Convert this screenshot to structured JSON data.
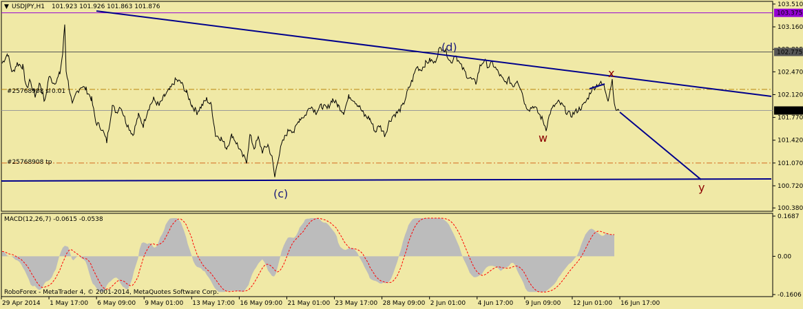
{
  "header": {
    "symbol": "USDJPY,H1",
    "ohlc": "101.923 101.926 101.863 101.876"
  },
  "colors": {
    "background": "#f0e9a6",
    "trendline": "#00008b",
    "wave_blue": "#1a1a7a",
    "wave_red": "#8b0000",
    "tp_line": "#d2691e",
    "sl_line": "#b8860b",
    "resistance": "#9400d3",
    "macd_hist": "#bcbcbc",
    "macd_signal": "#ff0000"
  },
  "chart_data": [
    {
      "type": "line",
      "title": "USDJPY,H1",
      "subtitle": "101.923 101.926 101.863 101.876",
      "ylim": [
        100.35,
        103.53
      ],
      "y_ticks": [
        "103.510",
        "103.160",
        "102.815",
        "102.470",
        "102.120",
        "101.770",
        "101.420",
        "101.070",
        "100.720",
        "100.380"
      ],
      "x_ticks": [
        "29 Apr 2014",
        "1 May 17:00",
        "6 May 09:00",
        "9 May 01:00",
        "13 May 17:00",
        "16 May 09:00",
        "21 May 01:00",
        "23 May 17:00",
        "28 May 09:00",
        "2 Jun 01:00",
        "4 Jun 17:00",
        "9 Jun 09:00",
        "12 Jun 01:00",
        "16 Jun 17:00"
      ],
      "price_anchors": [
        [
          0,
          102.6
        ],
        [
          8,
          102.75
        ],
        [
          15,
          102.45
        ],
        [
          22,
          102.6
        ],
        [
          30,
          102.55
        ],
        [
          36,
          102.2
        ],
        [
          40,
          102.35
        ],
        [
          48,
          102.1
        ],
        [
          55,
          102.3
        ],
        [
          62,
          102.0
        ],
        [
          68,
          102.4
        ],
        [
          75,
          102.3
        ],
        [
          80,
          102.35
        ],
        [
          84,
          102.45
        ],
        [
          88,
          102.75
        ],
        [
          91,
          103.2
        ],
        [
          93,
          102.5
        ],
        [
          97,
          102.25
        ],
        [
          102,
          101.95
        ],
        [
          108,
          102.15
        ],
        [
          115,
          102.25
        ],
        [
          122,
          102.2
        ],
        [
          130,
          102.05
        ],
        [
          136,
          101.7
        ],
        [
          145,
          101.6
        ],
        [
          152,
          101.4
        ],
        [
          160,
          101.95
        ],
        [
          166,
          101.85
        ],
        [
          172,
          101.95
        ],
        [
          180,
          101.7
        ],
        [
          190,
          101.5
        ],
        [
          198,
          101.8
        ],
        [
          205,
          101.65
        ],
        [
          212,
          101.9
        ],
        [
          220,
          102.05
        ],
        [
          228,
          101.95
        ],
        [
          236,
          102.1
        ],
        [
          244,
          102.2
        ],
        [
          252,
          102.35
        ],
        [
          260,
          102.3
        ],
        [
          268,
          102.15
        ],
        [
          276,
          101.95
        ],
        [
          283,
          101.85
        ],
        [
          290,
          101.95
        ],
        [
          297,
          102.05
        ],
        [
          304,
          101.95
        ],
        [
          310,
          101.5
        ],
        [
          318,
          101.45
        ],
        [
          326,
          101.3
        ],
        [
          334,
          101.5
        ],
        [
          342,
          101.35
        ],
        [
          348,
          101.2
        ],
        [
          355,
          101.1
        ],
        [
          360,
          101.5
        ],
        [
          366,
          101.3
        ],
        [
          372,
          101.45
        ],
        [
          378,
          101.25
        ],
        [
          386,
          101.35
        ],
        [
          392,
          101.15
        ],
        [
          396,
          100.85
        ],
        [
          400,
          101.1
        ],
        [
          406,
          101.35
        ],
        [
          412,
          101.5
        ],
        [
          418,
          101.6
        ],
        [
          424,
          101.55
        ],
        [
          432,
          101.75
        ],
        [
          440,
          101.8
        ],
        [
          448,
          101.95
        ],
        [
          456,
          101.85
        ],
        [
          464,
          101.95
        ],
        [
          472,
          101.9
        ],
        [
          480,
          102.05
        ],
        [
          488,
          101.95
        ],
        [
          496,
          101.85
        ],
        [
          504,
          102.1
        ],
        [
          510,
          102.05
        ],
        [
          518,
          101.95
        ],
        [
          526,
          101.8
        ],
        [
          534,
          101.75
        ],
        [
          542,
          101.55
        ],
        [
          548,
          101.65
        ],
        [
          556,
          101.5
        ],
        [
          562,
          101.7
        ],
        [
          568,
          101.8
        ],
        [
          575,
          101.85
        ],
        [
          582,
          101.95
        ],
        [
          590,
          102.2
        ],
        [
          596,
          102.35
        ],
        [
          602,
          102.55
        ],
        [
          608,
          102.5
        ],
        [
          615,
          102.6
        ],
        [
          622,
          102.65
        ],
        [
          628,
          102.6
        ],
        [
          634,
          102.8
        ],
        [
          640,
          102.85
        ],
        [
          646,
          102.75
        ],
        [
          652,
          102.6
        ],
        [
          658,
          102.75
        ],
        [
          664,
          102.6
        ],
        [
          670,
          102.5
        ],
        [
          676,
          102.4
        ],
        [
          682,
          102.35
        ],
        [
          688,
          102.3
        ],
        [
          694,
          102.55
        ],
        [
          700,
          102.65
        ],
        [
          706,
          102.55
        ],
        [
          712,
          102.6
        ],
        [
          718,
          102.5
        ],
        [
          724,
          102.4
        ],
        [
          730,
          102.3
        ],
        [
          736,
          102.35
        ],
        [
          742,
          102.25
        ],
        [
          748,
          102.35
        ],
        [
          754,
          102.2
        ],
        [
          760,
          101.95
        ],
        [
          766,
          101.9
        ],
        [
          772,
          101.95
        ],
        [
          778,
          101.85
        ],
        [
          784,
          101.75
        ],
        [
          790,
          101.6
        ],
        [
          796,
          101.85
        ],
        [
          802,
          101.95
        ],
        [
          808,
          102.0
        ],
        [
          814,
          101.95
        ],
        [
          820,
          101.85
        ],
        [
          826,
          101.8
        ],
        [
          832,
          101.85
        ],
        [
          838,
          101.9
        ],
        [
          844,
          101.95
        ],
        [
          850,
          102.05
        ],
        [
          856,
          102.2
        ],
        [
          862,
          102.25
        ],
        [
          868,
          102.3
        ],
        [
          874,
          102.25
        ],
        [
          880,
          102.05
        ],
        [
          886,
          102.35
        ],
        [
          890,
          101.9
        ],
        [
          896,
          101.876
        ]
      ],
      "lines": [
        {
          "name": "sl",
          "label": "#25768908 sl",
          "value": 102.2,
          "style": "dash-dot",
          "color": "#b8860b"
        },
        {
          "name": "tp",
          "label": "#25768908 tp",
          "value": 101.07,
          "style": "dash-dot",
          "color": "#d2691e"
        },
        {
          "name": "resistance",
          "label": "103.375",
          "value": 103.375,
          "style": "solid",
          "color": "#9400d3"
        },
        {
          "name": "level",
          "label": "102.775",
          "value": 102.775,
          "style": "solid",
          "color": "#555555"
        },
        {
          "name": "current",
          "label": "101.876",
          "value": 101.876,
          "style": "solid",
          "color": "#999999"
        }
      ],
      "sl_suffix": "0.01",
      "wave_labels": [
        {
          "text": "(d)",
          "color": "#1a1a7a"
        },
        {
          "text": "(c)",
          "color": "#1a1a7a"
        },
        {
          "text": "w",
          "color": "#8b0000"
        },
        {
          "text": "x",
          "color": "#8b0000"
        },
        {
          "text": "y",
          "color": "#8b0000"
        }
      ]
    },
    {
      "type": "bar",
      "title": "MACD(12,26,7) -0.0615 -0.0538",
      "ylim": [
        -0.1606,
        0.1687
      ],
      "y_ticks": [
        "0.1687",
        "0.00",
        "-0.1606"
      ]
    }
  ],
  "footer": {
    "copyright": "RoboForex - MetaTrader 4, © 2001-2014, MetaQuotes Software Corp."
  }
}
